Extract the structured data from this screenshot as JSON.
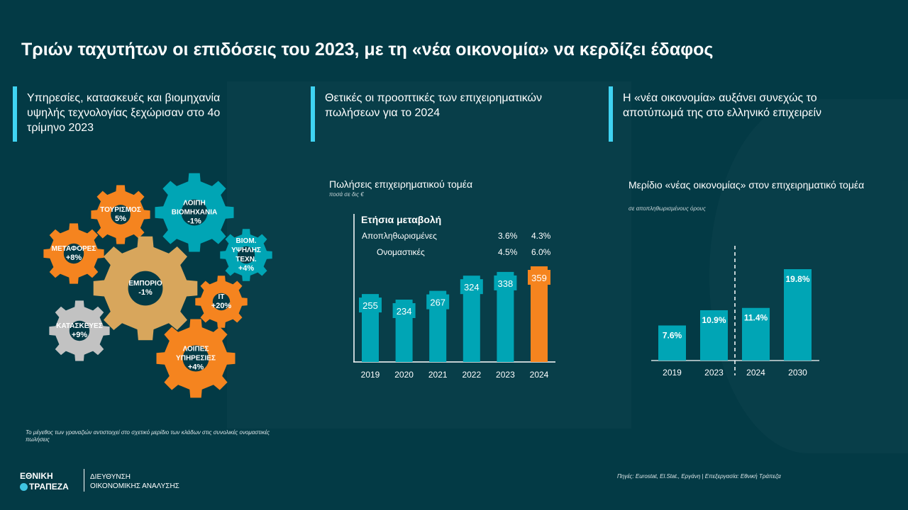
{
  "title": "Τριών ταχυτήτων οι επιδόσεις του 2023, με τη «νέα οικονομία» να κερδίζει έδαφος",
  "panels": [
    {
      "heading": "Υπηρεσίες, κατασκευές και βιομηχανία υψηλής τεχνολογίας ξεχώρισαν στο 4ο τρίμηνο 2023"
    },
    {
      "heading": "Θετικές οι προοπτικές των επιχειρηματικών πωλήσεων για το 2024"
    },
    {
      "heading": "Η «νέα οικονομία» αυξάνει συνεχώς το αποτύπωμά της στο ελληνικό επιχειρείν"
    }
  ],
  "gears": [
    {
      "label": "ΤΟΥΡΙΣΜΟΣ",
      "value": "5%",
      "color": "#f5841f"
    },
    {
      "label": "ΛΟΙΠΗ ΒΙΟΜΗΧΑΝΙΑ",
      "value": "-1%",
      "color": "#00a5b5"
    },
    {
      "label": "ΜΕΤΑΦΟΡΕΣ",
      "value": "+8%",
      "color": "#f5841f"
    },
    {
      "label": "ΒΙΟΜ. ΥΨΗΛΗΣ ΤΕΧΝ.",
      "value": "+4%",
      "color": "#00a5b5"
    },
    {
      "label": "ΕΜΠΟΡΙΟ",
      "value": "-1%",
      "color": "#d8a65c"
    },
    {
      "label": "IT",
      "value": "+20%",
      "color": "#f5841f"
    },
    {
      "label": "ΚΑΤΑΣΚΕΥΕΣ",
      "value": "+9%",
      "color": "#c2c2c2"
    },
    {
      "label": "ΛΟΙΠΕΣ ΥΠΗΡΕΣΙΕΣ",
      "value": "+4%",
      "color": "#f5841f"
    }
  ],
  "gear_note": "Το μέγεθος των γραναζιών αντιστοιχεί στο σχετικό μερίδιο των κλάδων στις συνολικές ονομαστικές πωλήσεις",
  "chart_data": [
    {
      "type": "bar",
      "title": "Πωλήσεις επιχειρηματικού τομέα",
      "subtitle": "ποσά σε δις €",
      "categories": [
        "2019",
        "2020",
        "2021",
        "2022",
        "2023",
        "2024"
      ],
      "values": [
        255,
        234,
        267,
        324,
        338,
        359
      ],
      "colors": [
        "#00a5b5",
        "#00a5b5",
        "#00a5b5",
        "#00a5b5",
        "#00a5b5",
        "#f5841f"
      ],
      "ylim": [
        0,
        359
      ],
      "table": {
        "title": "Ετήσια μεταβολή",
        "rows": [
          {
            "label": "Αποπληθωρισμένες",
            "v2023": "3.6%",
            "v2024": "4.3%"
          },
          {
            "label": "Ονομαστικές",
            "v2023": "4.5%",
            "v2024": "6.0%"
          }
        ]
      }
    },
    {
      "type": "bar",
      "title": "Μερίδιο «νέας οικονομίας» στον επιχειρηματικό τομέα",
      "subtitle": "σε αποπληθωρισμένους όρους",
      "categories": [
        "2019",
        "2023",
        "2024",
        "2030"
      ],
      "values": [
        7.6,
        10.9,
        11.4,
        19.8
      ],
      "labels": [
        "7.6%",
        "10.9%",
        "11.4%",
        "19.8%"
      ],
      "color": "#00a5b5",
      "divider_after": "2023",
      "ylim": [
        0,
        19.8
      ]
    }
  ],
  "footer": {
    "logo_line1": "ΕΘΝΙΚΗ",
    "logo_line2": "ΤΡΑΠΕΖΑ",
    "dept_line1": "ΔΙΕΥΘΥΝΣΗ",
    "dept_line2": "ΟΙΚΟΝΟΜΙΚΗΣ ΑΝΑΛΥΣΗΣ",
    "source": "Πηγές: Eurostat, El.Stat., Εργάνη | Επεξεργασία: Εθνική Τράπεζα"
  }
}
